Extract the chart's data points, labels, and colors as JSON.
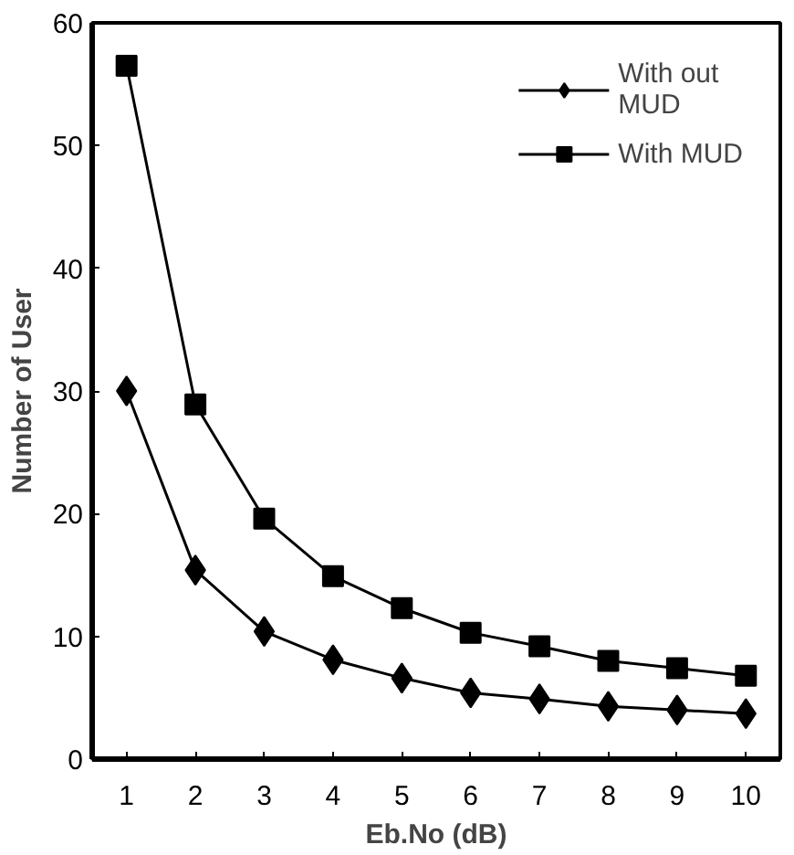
{
  "chart_data": {
    "type": "line",
    "xlabel": "Eb.No (dB)",
    "ylabel": "Number of User",
    "x": [
      1,
      2,
      3,
      4,
      5,
      6,
      7,
      8,
      9,
      10
    ],
    "xlim": [
      0.5,
      10.5
    ],
    "xticks": [
      1,
      2,
      3,
      4,
      5,
      6,
      7,
      8,
      9,
      10
    ],
    "ylim": [
      0,
      60
    ],
    "yticks": [
      0,
      10,
      20,
      30,
      40,
      50,
      60
    ],
    "grid": false,
    "legend": "top right",
    "series": [
      {
        "name": "With out\nMUD",
        "color": "#000000",
        "marker": "diamond",
        "values": [
          30,
          15.4,
          10.4,
          8.1,
          6.6,
          5.4,
          4.9,
          4.3,
          4.0,
          3.7
        ]
      },
      {
        "name": "With MUD",
        "color": "#000000",
        "marker": "square",
        "values": [
          56.5,
          28.9,
          19.6,
          14.9,
          12.3,
          10.3,
          9.2,
          8.0,
          7.4,
          6.8
        ]
      }
    ]
  }
}
